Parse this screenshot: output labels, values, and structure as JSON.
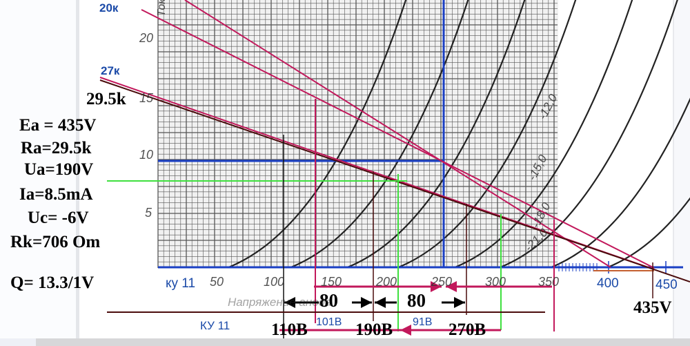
{
  "chart_data": {
    "type": "line",
    "title": "",
    "xlabel": "Напряжение анода",
    "ylabel": "Ток",
    "xlim": [
      0,
      460
    ],
    "ylim": [
      0,
      24
    ],
    "x_ticks": [
      "50",
      "100",
      "150",
      "200",
      "250",
      "300",
      "350",
      "400",
      "450"
    ],
    "y_ticks": [
      "5",
      "10",
      "15",
      "20"
    ],
    "grid": true,
    "curve_labels": [
      "-12,0",
      "-15,0",
      "-18,0",
      "-21,0"
    ],
    "load_lines": [
      {
        "label": "20к",
        "color": "#c2185b"
      },
      {
        "label": "27к",
        "color": "#c2185b"
      },
      {
        "label": "29.5k",
        "color": "#5a1010"
      }
    ],
    "operating_point": {
      "ua": 250,
      "ia": 9.5
    },
    "supply_voltage_label": "435V",
    "swing_labels": [
      "80",
      "80"
    ],
    "voltage_marks": [
      "110В",
      "190В",
      "270В"
    ],
    "blue_marks": [
      "101В",
      "91В"
    ],
    "tube_labels": [
      "ку 11",
      "КУ 11"
    ]
  },
  "params": {
    "ea": "Ea = 435V",
    "ra": "Ra=29.5k",
    "ua": "Ua=190V",
    "ia": "Ia=8.5mA",
    "uc": "Uc= -6V",
    "rk": "Rk=706 Om",
    "q": "Q= 13.3/1V"
  },
  "colors": {
    "red": "#c2185b",
    "blue": "#1a3fc4",
    "green": "#3ee03e",
    "dark": "#4a0c0c"
  }
}
